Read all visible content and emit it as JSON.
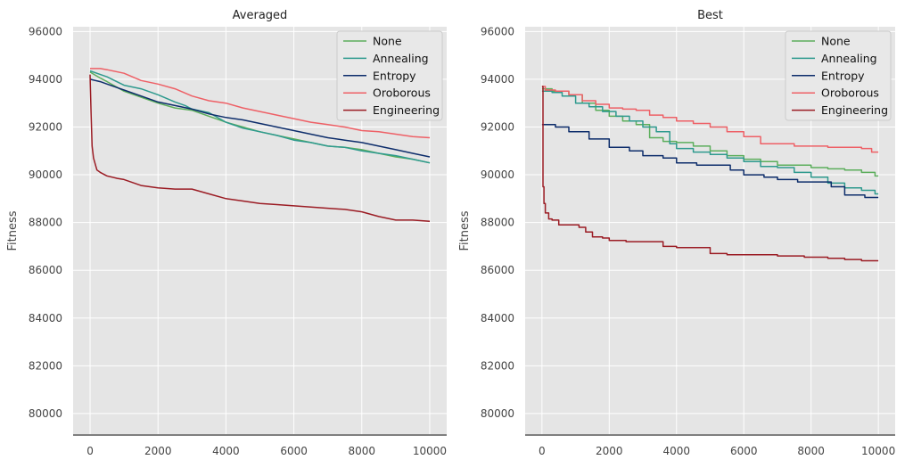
{
  "colors": {
    "plot_bg": "#e5e5e5",
    "grid": "#ffffff",
    "baseline": "#7f7f7f",
    "None": "#5cae5c",
    "Annealing": "#2e9a8e",
    "Entropy": "#0d2d6b",
    "Oroborous": "#ee6066",
    "Engineering": "#9b1c24"
  },
  "chart_data": [
    {
      "type": "line",
      "title": "Averaged",
      "xlabel": "",
      "ylabel": "Fitness",
      "xlim": [
        -500,
        10500
      ],
      "ylim": [
        79100,
        96200
      ],
      "xticks": [
        0,
        2000,
        4000,
        6000,
        8000,
        10000
      ],
      "yticks": [
        80000,
        82000,
        84000,
        86000,
        88000,
        90000,
        92000,
        94000,
        96000
      ],
      "grid": true,
      "legend": "top-right",
      "step": false,
      "series": [
        {
          "name": "None",
          "x": [
            0,
            300,
            500,
            1000,
            1500,
            2000,
            2500,
            3000,
            3500,
            4000,
            4500,
            5000,
            5500,
            6000,
            6500,
            7000,
            7500,
            8000,
            8500,
            9000,
            9500,
            10000
          ],
          "y": [
            94300,
            94050,
            93900,
            93500,
            93250,
            93000,
            92800,
            92700,
            92450,
            92200,
            92000,
            91800,
            91650,
            91500,
            91350,
            91200,
            91150,
            91050,
            90900,
            90750,
            90650,
            90500
          ]
        },
        {
          "name": "Annealing",
          "x": [
            0,
            300,
            500,
            1000,
            1500,
            2000,
            2500,
            2800,
            3000,
            3500,
            4000,
            4500,
            5000,
            5500,
            6000,
            6500,
            7000,
            7500,
            8000,
            8500,
            9000,
            9500,
            10000
          ],
          "y": [
            94350,
            94200,
            94100,
            93750,
            93600,
            93350,
            93050,
            92900,
            92750,
            92600,
            92200,
            91950,
            91800,
            91650,
            91450,
            91350,
            91200,
            91150,
            91000,
            90900,
            90800,
            90650,
            90500
          ]
        },
        {
          "name": "Entropy",
          "x": [
            0,
            300,
            500,
            1000,
            1500,
            2000,
            2500,
            3000,
            3500,
            4000,
            4500,
            5000,
            5500,
            6000,
            6500,
            7000,
            7500,
            8000,
            8500,
            9000,
            9500,
            10000
          ],
          "y": [
            94000,
            93900,
            93800,
            93550,
            93300,
            93050,
            92900,
            92750,
            92550,
            92400,
            92300,
            92150,
            92000,
            91850,
            91700,
            91550,
            91450,
            91350,
            91200,
            91050,
            90900,
            90750
          ]
        },
        {
          "name": "Oroborous",
          "x": [
            0,
            300,
            500,
            1000,
            1500,
            2000,
            2500,
            3000,
            3500,
            4000,
            4500,
            5000,
            5500,
            6000,
            6500,
            7000,
            7500,
            8000,
            8500,
            9000,
            9500,
            10000
          ],
          "y": [
            94450,
            94450,
            94400,
            94250,
            93950,
            93800,
            93600,
            93300,
            93100,
            93000,
            92800,
            92650,
            92500,
            92350,
            92200,
            92100,
            92000,
            91850,
            91800,
            91700,
            91600,
            91550
          ]
        },
        {
          "name": "Engineering",
          "x": [
            0,
            30,
            60,
            100,
            200,
            300,
            500,
            800,
            1000,
            1500,
            2000,
            2500,
            3000,
            3500,
            4000,
            4500,
            5000,
            5500,
            6000,
            6500,
            7000,
            7500,
            8000,
            8500,
            9000,
            9500,
            10000
          ],
          "y": [
            94200,
            92500,
            91200,
            90700,
            90200,
            90100,
            89950,
            89850,
            89800,
            89550,
            89450,
            89400,
            89400,
            89200,
            89000,
            88900,
            88800,
            88750,
            88700,
            88650,
            88600,
            88550,
            88450,
            88250,
            88100,
            88100,
            88050
          ]
        }
      ]
    },
    {
      "type": "line",
      "title": "Best",
      "xlabel": "",
      "ylabel": "Fitness",
      "xlim": [
        -500,
        10500
      ],
      "ylim": [
        79100,
        96200
      ],
      "xticks": [
        0,
        2000,
        4000,
        6000,
        8000,
        10000
      ],
      "yticks": [
        80000,
        82000,
        84000,
        86000,
        88000,
        90000,
        92000,
        94000,
        96000
      ],
      "grid": true,
      "legend": "top-right",
      "step": true,
      "series": [
        {
          "name": "None",
          "x": [
            0,
            300,
            800,
            1200,
            1600,
            2000,
            2400,
            2800,
            3200,
            3600,
            4000,
            4500,
            5000,
            5500,
            6000,
            6500,
            7000,
            7500,
            8000,
            8500,
            9000,
            9500,
            9900,
            10000
          ],
          "y": [
            93600,
            93500,
            93350,
            93000,
            92700,
            92450,
            92250,
            92100,
            91550,
            91400,
            91350,
            91200,
            91000,
            90800,
            90650,
            90550,
            90400,
            90400,
            90300,
            90250,
            90200,
            90100,
            89950,
            89950
          ]
        },
        {
          "name": "Annealing",
          "x": [
            0,
            300,
            600,
            1000,
            1400,
            1800,
            2200,
            2600,
            3000,
            3400,
            3800,
            4000,
            4500,
            5000,
            5500,
            6000,
            6500,
            7000,
            7500,
            8000,
            8500,
            9000,
            9500,
            9900,
            10000
          ],
          "y": [
            93500,
            93450,
            93300,
            93000,
            92850,
            92650,
            92450,
            92250,
            92000,
            91800,
            91300,
            91100,
            90950,
            90850,
            90700,
            90550,
            90350,
            90300,
            90100,
            89900,
            89650,
            89450,
            89350,
            89200,
            89200
          ]
        },
        {
          "name": "Entropy",
          "x": [
            0,
            400,
            800,
            1400,
            2000,
            2600,
            3000,
            3600,
            4000,
            4600,
            5000,
            5600,
            6000,
            6600,
            7000,
            7600,
            8000,
            8600,
            9000,
            9600,
            10000
          ],
          "y": [
            92100,
            92000,
            91800,
            91500,
            91150,
            91000,
            90800,
            90700,
            90500,
            90400,
            90400,
            90200,
            90000,
            89900,
            89800,
            89700,
            89700,
            89500,
            89150,
            89050,
            89050
          ]
        },
        {
          "name": "Oroborous",
          "x": [
            0,
            100,
            400,
            800,
            1200,
            1600,
            2000,
            2400,
            2800,
            3200,
            3600,
            4000,
            4500,
            5000,
            5500,
            6000,
            6500,
            7000,
            7500,
            8000,
            8500,
            9000,
            9500,
            9800,
            10000
          ],
          "y": [
            93700,
            93550,
            93500,
            93350,
            93100,
            92950,
            92800,
            92750,
            92700,
            92500,
            92400,
            92250,
            92150,
            92000,
            91800,
            91600,
            91300,
            91300,
            91200,
            91200,
            91150,
            91150,
            91100,
            90950,
            90950
          ]
        },
        {
          "name": "Engineering",
          "x": [
            0,
            30,
            60,
            100,
            200,
            300,
            500,
            1000,
            1100,
            1300,
            1500,
            1800,
            2000,
            2500,
            3000,
            3600,
            4000,
            4500,
            5000,
            5500,
            6000,
            6500,
            7000,
            7500,
            7800,
            8500,
            9000,
            9500,
            10000
          ],
          "y": [
            93700,
            89500,
            88800,
            88400,
            88150,
            88100,
            87900,
            87900,
            87800,
            87600,
            87400,
            87350,
            87250,
            87200,
            87200,
            87000,
            86950,
            86950,
            86700,
            86650,
            86650,
            86650,
            86600,
            86600,
            86550,
            86500,
            86450,
            86400,
            86400
          ]
        }
      ]
    }
  ]
}
